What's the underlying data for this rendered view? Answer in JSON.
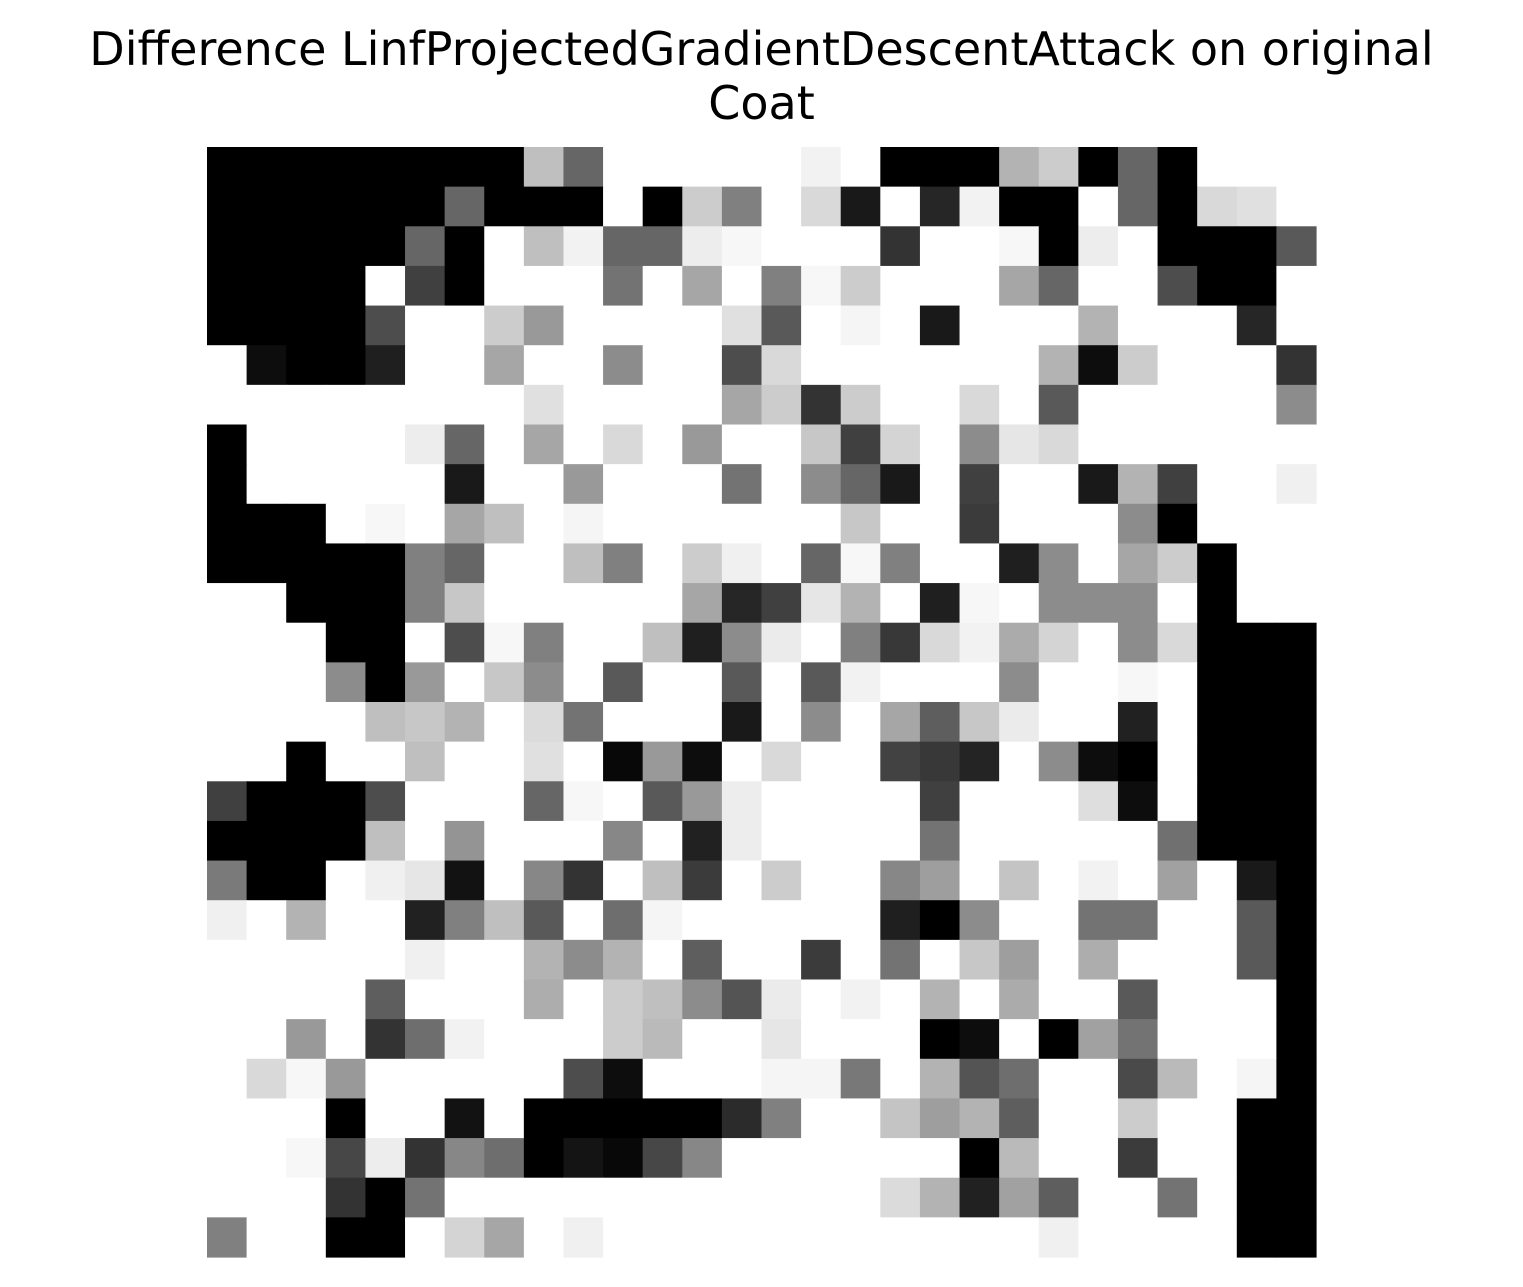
{
  "chart_data": {
    "type": "heatmap",
    "title": "Difference LinfProjectedGradientDescentAttack on original\nCoat",
    "title_lines": [
      "Difference LinfProjectedGradientDescentAttack on original",
      "Coat"
    ],
    "colormap": "gray_r",
    "axes": "off",
    "rows": 28,
    "cols": 28,
    "values": [
      [
        1,
        1,
        1,
        1,
        1,
        1,
        1,
        1,
        0.25,
        0.6,
        0,
        0,
        0,
        0,
        0,
        0.05,
        0,
        1,
        1,
        1,
        0.3,
        0.2,
        1,
        0.6,
        1,
        0,
        0,
        0
      ],
      [
        1,
        1,
        1,
        1,
        1,
        1,
        0.6,
        1,
        1,
        1,
        0,
        1,
        0.2,
        0.5,
        0,
        0.15,
        0.9,
        0,
        0.85,
        0.05,
        1,
        1,
        0,
        0.6,
        1,
        0.15,
        0.12,
        0
      ],
      [
        1,
        1,
        1,
        1,
        1,
        0.6,
        1,
        0,
        0.25,
        0.05,
        0.6,
        0.6,
        0.07,
        0.03,
        0,
        0,
        0,
        0.8,
        0,
        0,
        0.03,
        1,
        0.07,
        0,
        1,
        1,
        1,
        0.65
      ],
      [
        1,
        1,
        1,
        1,
        0,
        0.75,
        1,
        0,
        0,
        0,
        0.55,
        0,
        0.35,
        0,
        0.5,
        0.03,
        0.2,
        0,
        0,
        0,
        0.35,
        0.6,
        0,
        0,
        0.7,
        1,
        1,
        0
      ],
      [
        1,
        1,
        1,
        1,
        0.7,
        0,
        0,
        0.2,
        0.4,
        0,
        0,
        0,
        0,
        0.12,
        0.65,
        0,
        0.04,
        0,
        0.9,
        0,
        0,
        0,
        0.3,
        0,
        0,
        0,
        0.85,
        0
      ],
      [
        0,
        0.95,
        1,
        1,
        0.88,
        0,
        0,
        0.35,
        0,
        0,
        0.45,
        0,
        0,
        0.7,
        0.15,
        0,
        0,
        0,
        0,
        0,
        0,
        0.3,
        0.95,
        0.2,
        0,
        0,
        0,
        0.8
      ],
      [
        0,
        0,
        0,
        0,
        0,
        0,
        0,
        0,
        0.12,
        0,
        0,
        0,
        0,
        0.35,
        0.2,
        0.8,
        0.2,
        0,
        0,
        0.15,
        0,
        0.65,
        0,
        0,
        0,
        0,
        0,
        0.45
      ],
      [
        1,
        0,
        0,
        0,
        0,
        0.07,
        0.6,
        0,
        0.35,
        0,
        0.15,
        0,
        0.4,
        0,
        0,
        0.22,
        0.75,
        0.17,
        0,
        0.45,
        0.1,
        0.15,
        0,
        0,
        0,
        0,
        0,
        0
      ],
      [
        1,
        0,
        0,
        0,
        0,
        0,
        0.9,
        0,
        0,
        0.4,
        0,
        0,
        0,
        0.55,
        0,
        0.45,
        0.6,
        0.9,
        0,
        0.75,
        0,
        0,
        0.9,
        0.3,
        0.75,
        0,
        0,
        0.06
      ],
      [
        1,
        1,
        1,
        0,
        0.03,
        0,
        0.35,
        0.25,
        0,
        0.04,
        0,
        0,
        0,
        0,
        0,
        0,
        0.22,
        0,
        0,
        0.77,
        0,
        0,
        0,
        0.45,
        1,
        0,
        0,
        0
      ],
      [
        1,
        1,
        1,
        1,
        1,
        0.5,
        0.6,
        0,
        0,
        0.25,
        0.5,
        0,
        0.2,
        0.06,
        0,
        0.6,
        0.03,
        0.5,
        0,
        0,
        0.88,
        0.45,
        0,
        0.35,
        0.2,
        1,
        0,
        0
      ],
      [
        0,
        0,
        1,
        1,
        1,
        0.5,
        0.22,
        0,
        0,
        0,
        0,
        0,
        0.35,
        0.85,
        0.75,
        0.1,
        0.3,
        0,
        0.88,
        0.03,
        0,
        0.45,
        0.45,
        0.45,
        0,
        1,
        0,
        0
      ],
      [
        0,
        0,
        0,
        1,
        1,
        0,
        0.7,
        0.03,
        0.5,
        0,
        0,
        0.25,
        0.88,
        0.45,
        0.08,
        0,
        0.5,
        0.78,
        0.15,
        0.05,
        0.33,
        0.17,
        0,
        0.45,
        0.15,
        1,
        1,
        1
      ],
      [
        0,
        0,
        0,
        0.45,
        1,
        0.4,
        0,
        0.22,
        0.45,
        0,
        0.65,
        0,
        0,
        0.65,
        0,
        0.65,
        0.05,
        0,
        0,
        0,
        0.45,
        0,
        0,
        0.03,
        0,
        1,
        1,
        1
      ],
      [
        0,
        0,
        0,
        0,
        0.25,
        0.22,
        0.3,
        0,
        0.14,
        0.55,
        0,
        0,
        0,
        0.9,
        0,
        0.45,
        0,
        0.35,
        0.63,
        0.22,
        0.08,
        0,
        0,
        0.87,
        0,
        1,
        1,
        1
      ],
      [
        0,
        0,
        1,
        0,
        0,
        0.25,
        0,
        0,
        0.12,
        0,
        0.97,
        0.4,
        0.95,
        0,
        0.15,
        0,
        0,
        0.74,
        0.78,
        0.86,
        0,
        0.45,
        0.95,
        1,
        0,
        1,
        1,
        1
      ],
      [
        0.75,
        1,
        1,
        1,
        0.7,
        0,
        0,
        0,
        0.6,
        0.03,
        0,
        0.65,
        0.4,
        0.07,
        0,
        0,
        0,
        0,
        0.75,
        0,
        0,
        0,
        0.13,
        0.95,
        0,
        1,
        1,
        1
      ],
      [
        1,
        1,
        1,
        1,
        0.25,
        0,
        0.42,
        0,
        0,
        0,
        0.47,
        0,
        0.87,
        0.07,
        0,
        0,
        0,
        0,
        0.55,
        0,
        0,
        0,
        0,
        0,
        0.56,
        1,
        1,
        1
      ],
      [
        0.52,
        1,
        1,
        0,
        0.06,
        0.1,
        0.93,
        0,
        0.47,
        0.8,
        0,
        0.25,
        0.77,
        0,
        0.2,
        0,
        0,
        0.47,
        0.38,
        0,
        0.23,
        0,
        0.05,
        0,
        0.37,
        0,
        0.9,
        1
      ],
      [
        0.06,
        0,
        0.3,
        0,
        0,
        0.87,
        0.5,
        0.25,
        0.65,
        0,
        0.57,
        0.04,
        0,
        0,
        0,
        0,
        0,
        0.88,
        1,
        0.45,
        0,
        0,
        0.55,
        0.55,
        0,
        0,
        0.65,
        1
      ],
      [
        0,
        0,
        0,
        0,
        0,
        0.06,
        0,
        0,
        0.3,
        0.45,
        0.3,
        0,
        0.63,
        0,
        0,
        0.77,
        0,
        0.55,
        0,
        0.22,
        0.38,
        0,
        0.32,
        0,
        0,
        0,
        0.65,
        1
      ],
      [
        0,
        0,
        0,
        0,
        0.63,
        0,
        0,
        0,
        0.32,
        0,
        0.2,
        0.25,
        0.45,
        0.67,
        0.08,
        0,
        0.05,
        0,
        0.3,
        0,
        0.33,
        0,
        0,
        0.65,
        0,
        0,
        0,
        1
      ],
      [
        0,
        0,
        0.4,
        0,
        0.8,
        0.57,
        0.05,
        0,
        0,
        0,
        0.2,
        0.27,
        0,
        0,
        0.1,
        0,
        0,
        0,
        1,
        0.95,
        0,
        1,
        0.37,
        0.55,
        0,
        0,
        0,
        1
      ],
      [
        0,
        0.15,
        0.03,
        0.4,
        0,
        0,
        0,
        0,
        0,
        0.7,
        0.95,
        0,
        0,
        0,
        0.04,
        0.04,
        0.53,
        0,
        0.3,
        0.67,
        0.57,
        0,
        0,
        0.71,
        0.27,
        0,
        0.04,
        1
      ],
      [
        0,
        0,
        0,
        1,
        0,
        0,
        0.93,
        0,
        1,
        1,
        1,
        1,
        1,
        0.83,
        0.5,
        0,
        0,
        0.23,
        0.38,
        0.3,
        0.63,
        0,
        0,
        0.2,
        0,
        0,
        1,
        1
      ],
      [
        0,
        0,
        0.03,
        0.72,
        0.07,
        0.8,
        0.47,
        0.57,
        1,
        0.92,
        0.97,
        0.72,
        0.47,
        0,
        0,
        0,
        0,
        0,
        0,
        1,
        0.27,
        0,
        0,
        0.77,
        0,
        0,
        1,
        1
      ],
      [
        0,
        0,
        0,
        0.8,
        1,
        0.55,
        0,
        0,
        0,
        0,
        0,
        0,
        0,
        0,
        0,
        0,
        0,
        0.14,
        0.3,
        0.87,
        0.37,
        0.63,
        0,
        0,
        0.55,
        0,
        1,
        1
      ],
      [
        0.5,
        0,
        0,
        1,
        1,
        0,
        0.17,
        0.35,
        0,
        0.06,
        0,
        0,
        0,
        0,
        0,
        0,
        0,
        0,
        0,
        0,
        0,
        0.06,
        0,
        0,
        0,
        0,
        1,
        1
      ]
    ]
  }
}
